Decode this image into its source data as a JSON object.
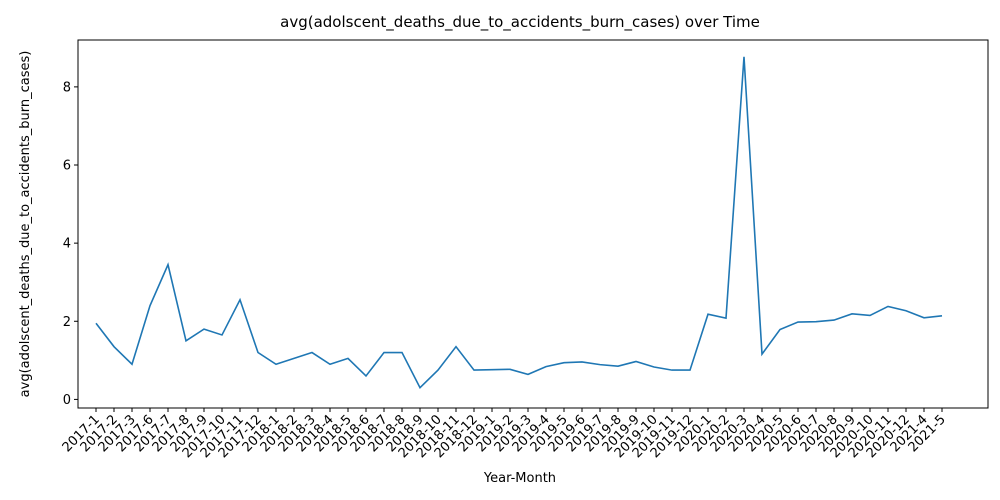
{
  "chart_data": {
    "type": "line",
    "title": "avg(adolscent_deaths_due_to_accidents_burn_cases) over Time",
    "xlabel": "Year-Month",
    "ylabel": "avg(adolscent_deaths_due_to_accidents_burn_cases)",
    "ylim": [
      -0.22,
      9.2
    ],
    "yticks": [
      0,
      2,
      4,
      6,
      8
    ],
    "grid": false,
    "line_color": "#1f77b4",
    "categories": [
      "2017-1",
      "2017-2",
      "2017-3",
      "2017-6",
      "2017-7",
      "2017-8",
      "2017-9",
      "2017-10",
      "2017-11",
      "2017-12",
      "2018-1",
      "2018-2",
      "2018-3",
      "2018-4",
      "2018-5",
      "2018-6",
      "2018-7",
      "2018-8",
      "2018-9",
      "2018-10",
      "2018-11",
      "2018-12",
      "2019-1",
      "2019-2",
      "2019-3",
      "2019-4",
      "2019-5",
      "2019-6",
      "2019-7",
      "2019-8",
      "2019-9",
      "2019-10",
      "2019-11",
      "2019-12",
      "2020-1",
      "2020-2",
      "2020-3",
      "2020-4",
      "2020-5",
      "2020-6",
      "2020-7",
      "2020-8",
      "2020-9",
      "2020-10",
      "2020-11",
      "2020-12",
      "2021-4",
      "2021-5"
    ],
    "values": [
      1.95,
      1.35,
      0.9,
      2.4,
      3.45,
      1.5,
      1.8,
      1.65,
      2.55,
      1.2,
      0.9,
      1.05,
      1.2,
      0.9,
      1.05,
      0.6,
      1.2,
      1.2,
      0.3,
      0.75,
      1.35,
      0.75,
      0.76,
      0.77,
      0.64,
      0.84,
      0.94,
      0.96,
      0.89,
      0.85,
      0.97,
      0.83,
      0.75,
      0.75,
      2.18,
      2.08,
      8.77,
      1.16,
      1.79,
      1.98,
      1.99,
      2.03,
      2.19,
      2.15,
      2.38,
      2.27,
      2.09,
      2.14
    ]
  }
}
